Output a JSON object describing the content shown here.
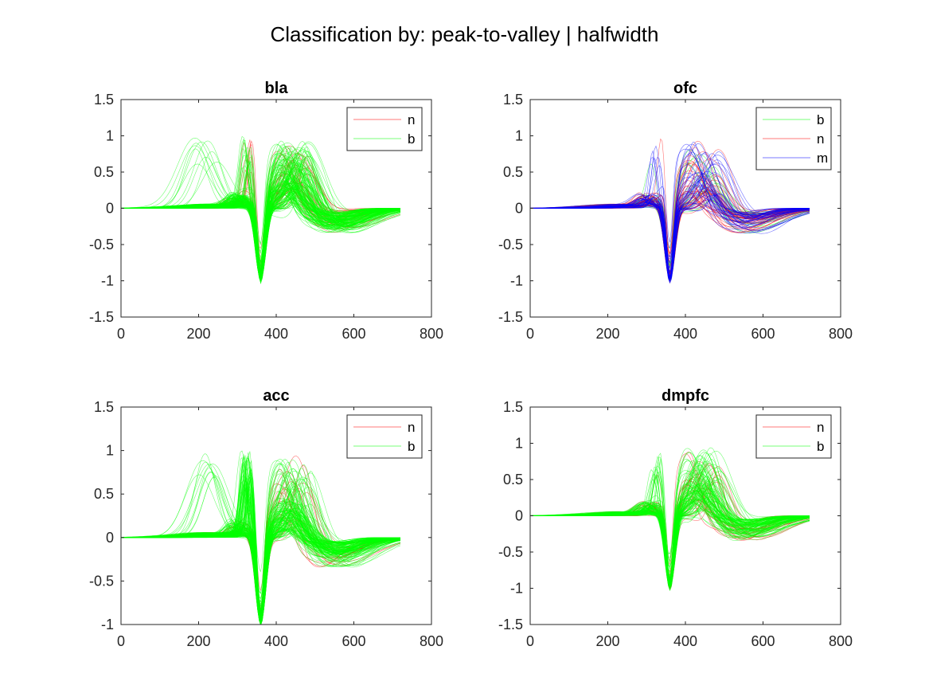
{
  "figure": {
    "title": "Classification by: peak-to-valley | halfwidth"
  },
  "chart_data": [
    {
      "type": "line",
      "title": "bla",
      "xlim": [
        0,
        800
      ],
      "ylim": [
        -1.5,
        1.5
      ],
      "xticks": [
        "0",
        "200",
        "400",
        "600",
        "800"
      ],
      "yticks": [
        "-1.5",
        "-1",
        "-0.5",
        "0",
        "0.5",
        "1",
        "1.5"
      ],
      "legend_position": "top-right",
      "series": [
        {
          "name": "n",
          "color": "#ff0000",
          "traces": 30,
          "seed": 11,
          "mix": {
            "normal": 0.6,
            "early": 0.4,
            "late": 0
          }
        },
        {
          "name": "b",
          "color": "#00ff00",
          "traces": 160,
          "seed": 23,
          "mix": {
            "normal": 0.85,
            "early": 0.1,
            "late": 0.05
          }
        }
      ],
      "n_samples": 720,
      "trough_sample": 360
    },
    {
      "type": "line",
      "title": "ofc",
      "xlim": [
        0,
        800
      ],
      "ylim": [
        -1.5,
        1.5
      ],
      "xticks": [
        "0",
        "200",
        "400",
        "600",
        "800"
      ],
      "yticks": [
        "-1.5",
        "-1",
        "-0.5",
        "0",
        "0.5",
        "1",
        "1.5"
      ],
      "legend_position": "top-right",
      "series": [
        {
          "name": "b",
          "color": "#00ff00",
          "traces": 15,
          "seed": 31,
          "mix": {
            "normal": 0.9,
            "early": 0.1,
            "late": 0
          }
        },
        {
          "name": "n",
          "color": "#ff0000",
          "traces": 40,
          "seed": 37,
          "mix": {
            "normal": 0.95,
            "early": 0.05,
            "late": 0
          }
        },
        {
          "name": "m",
          "color": "#0000ff",
          "traces": 45,
          "seed": 41,
          "mix": {
            "normal": 0.9,
            "early": 0.1,
            "late": 0
          }
        }
      ],
      "n_samples": 720,
      "trough_sample": 360
    },
    {
      "type": "line",
      "title": "acc",
      "xlim": [
        0,
        800
      ],
      "ylim": [
        -1,
        1.5
      ],
      "xticks": [
        "0",
        "200",
        "400",
        "600",
        "800"
      ],
      "yticks": [
        "-1",
        "-0.5",
        "0",
        "0.5",
        "1",
        "1.5"
      ],
      "legend_position": "top-right",
      "series": [
        {
          "name": "n",
          "color": "#ff0000",
          "traces": 20,
          "seed": 53,
          "mix": {
            "normal": 1,
            "early": 0,
            "late": 0
          }
        },
        {
          "name": "b",
          "color": "#00ff00",
          "traces": 150,
          "seed": 59,
          "mix": {
            "normal": 0.55,
            "early": 0.4,
            "late": 0.05
          }
        }
      ],
      "n_samples": 720,
      "trough_sample": 360
    },
    {
      "type": "line",
      "title": "dmpfc",
      "xlim": [
        0,
        800
      ],
      "ylim": [
        -1.5,
        1.5
      ],
      "xticks": [
        "0",
        "200",
        "400",
        "600",
        "800"
      ],
      "yticks": [
        "-1.5",
        "-1",
        "-0.5",
        "0",
        "0.5",
        "1",
        "1.5"
      ],
      "legend_position": "top-right",
      "series": [
        {
          "name": "n",
          "color": "#ff0000",
          "traces": 25,
          "seed": 71,
          "mix": {
            "normal": 0.9,
            "early": 0.1,
            "late": 0
          }
        },
        {
          "name": "b",
          "color": "#00ff00",
          "traces": 110,
          "seed": 73,
          "mix": {
            "normal": 0.8,
            "early": 0.2,
            "late": 0
          }
        }
      ],
      "n_samples": 720,
      "trough_sample": 360
    }
  ]
}
